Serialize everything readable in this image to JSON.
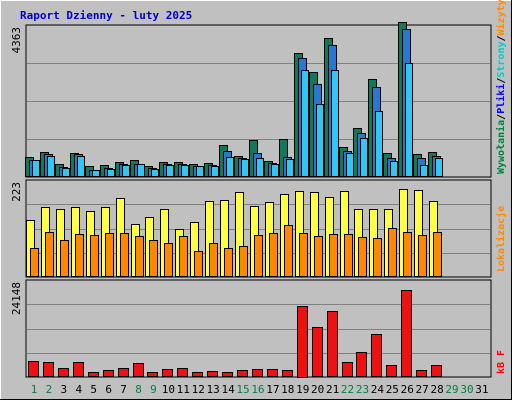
{
  "title": "Raport Dzienny -  luty 2025",
  "colors": {
    "background": "#c0c0c0",
    "panel": "#c0c0c0",
    "grid": "#808080",
    "visits": "#1a8060",
    "pages": "#2878d0",
    "files": "#33c6f0",
    "hits": "#0e7a5a",
    "sites": "#ffff44",
    "kbytes": "#ff8800",
    "bandwidth": "#ee1111",
    "weekend": "#008040",
    "weekday": "#0000cc"
  },
  "side_labels": {
    "top": [
      {
        "text": "Wywołania",
        "color": "#008040"
      },
      {
        "text": "/",
        "color": "#000000"
      },
      {
        "text": "Pliki",
        "color": "#0000ff"
      },
      {
        "text": "/",
        "color": "#000000"
      },
      {
        "text": "Strony",
        "color": "#00cccc"
      },
      {
        "text": "/",
        "color": "#000000"
      },
      {
        "text": "Wizyty",
        "color": "#ff8800"
      }
    ],
    "middle": [
      {
        "text": "Lokalizacje",
        "color": "#ff8800"
      }
    ],
    "bottom": [
      {
        "text": "kB F",
        "color": "#ff0000"
      }
    ]
  },
  "chart_data": [
    {
      "type": "bar",
      "panel": "top",
      "ymax_label": "4363",
      "ylim": [
        0,
        4363
      ],
      "categories": [
        "1",
        "2",
        "3",
        "4",
        "5",
        "6",
        "7",
        "8",
        "9",
        "10",
        "11",
        "12",
        "13",
        "14",
        "15",
        "16",
        "17",
        "18",
        "19",
        "20",
        "21",
        "22",
        "23",
        "24",
        "25",
        "26",
        "27",
        "28",
        "29",
        "30",
        "31"
      ],
      "series": [
        {
          "name": "Wywołania",
          "values": [
            560,
            710,
            350,
            680,
            300,
            310,
            410,
            460,
            280,
            420,
            410,
            350,
            390,
            900,
            580,
            1050,
            450,
            1080,
            3600,
            3050,
            4050,
            860,
            1410,
            2850,
            660,
            4500,
            650,
            690,
            null,
            null,
            null
          ]
        },
        {
          "name": "Pliki",
          "values": [
            480,
            640,
            250,
            640,
            190,
            220,
            350,
            360,
            230,
            340,
            360,
            300,
            320,
            720,
            520,
            680,
            380,
            560,
            3450,
            2700,
            3850,
            720,
            1250,
            2600,
            520,
            4300,
            520,
            580,
            null,
            null,
            null
          ]
        },
        {
          "name": "Strony",
          "values": [
            460,
            600,
            230,
            600,
            170,
            200,
            330,
            340,
            210,
            320,
            330,
            280,
            300,
            560,
            500,
            520,
            360,
            500,
            3100,
            2100,
            3100,
            670,
            1100,
            1900,
            450,
            3300,
            320,
            520,
            null,
            null,
            null
          ]
        }
      ]
    },
    {
      "type": "bar",
      "panel": "middle",
      "ymax_label": "223",
      "ylim": [
        0,
        223
      ],
      "series": [
        {
          "name": "Lokalizacje",
          "values": [
            134,
            164,
            158,
            164,
            154,
            164,
            184,
            124,
            140,
            158,
            112,
            128,
            179,
            180,
            199,
            165,
            176,
            194,
            202,
            200,
            187,
            201,
            159,
            159,
            159,
            206,
            204,
            177,
            null,
            null,
            null
          ]
        },
        {
          "name": "kB F",
          "values": [
            66,
            104,
            86,
            100,
            98,
            101,
            101,
            95,
            85,
            78,
            95,
            60,
            78,
            66,
            72,
            97,
            101,
            120,
            103,
            96,
            99,
            100,
            93,
            90,
            113,
            104,
            97,
            105,
            null,
            null,
            null
          ]
        }
      ]
    },
    {
      "type": "bar",
      "panel": "bottom",
      "ymax_label": "24148",
      "ylim": [
        0,
        30000
      ],
      "series": [
        {
          "name": "kB F",
          "values": [
            4800,
            4500,
            2400,
            4500,
            1400,
            1800,
            2700,
            4200,
            1300,
            2200,
            2600,
            1200,
            1600,
            1300,
            2000,
            2300,
            2200,
            1800,
            22500,
            15700,
            20700,
            4600,
            7600,
            13400,
            3500,
            27500,
            1800,
            3500,
            null,
            null,
            null
          ]
        }
      ]
    }
  ],
  "days": [
    {
      "label": "1",
      "weekend": true
    },
    {
      "label": "2",
      "weekend": true
    },
    {
      "label": "3",
      "weekend": false
    },
    {
      "label": "4",
      "weekend": false
    },
    {
      "label": "5",
      "weekend": false
    },
    {
      "label": "6",
      "weekend": false
    },
    {
      "label": "7",
      "weekend": false
    },
    {
      "label": "8",
      "weekend": true
    },
    {
      "label": "9",
      "weekend": true
    },
    {
      "label": "10",
      "weekend": false
    },
    {
      "label": "11",
      "weekend": false
    },
    {
      "label": "12",
      "weekend": false
    },
    {
      "label": "13",
      "weekend": false
    },
    {
      "label": "14",
      "weekend": false
    },
    {
      "label": "15",
      "weekend": true
    },
    {
      "label": "16",
      "weekend": true
    },
    {
      "label": "17",
      "weekend": false
    },
    {
      "label": "18",
      "weekend": false
    },
    {
      "label": "19",
      "weekend": false
    },
    {
      "label": "20",
      "weekend": false
    },
    {
      "label": "21",
      "weekend": false
    },
    {
      "label": "22",
      "weekend": true
    },
    {
      "label": "23",
      "weekend": true
    },
    {
      "label": "24",
      "weekend": false
    },
    {
      "label": "25",
      "weekend": false
    },
    {
      "label": "26",
      "weekend": false
    },
    {
      "label": "27",
      "weekend": false
    },
    {
      "label": "28",
      "weekend": false
    },
    {
      "label": "29",
      "weekend": true
    },
    {
      "label": "30",
      "weekend": true
    },
    {
      "label": "31",
      "weekend": false
    }
  ]
}
